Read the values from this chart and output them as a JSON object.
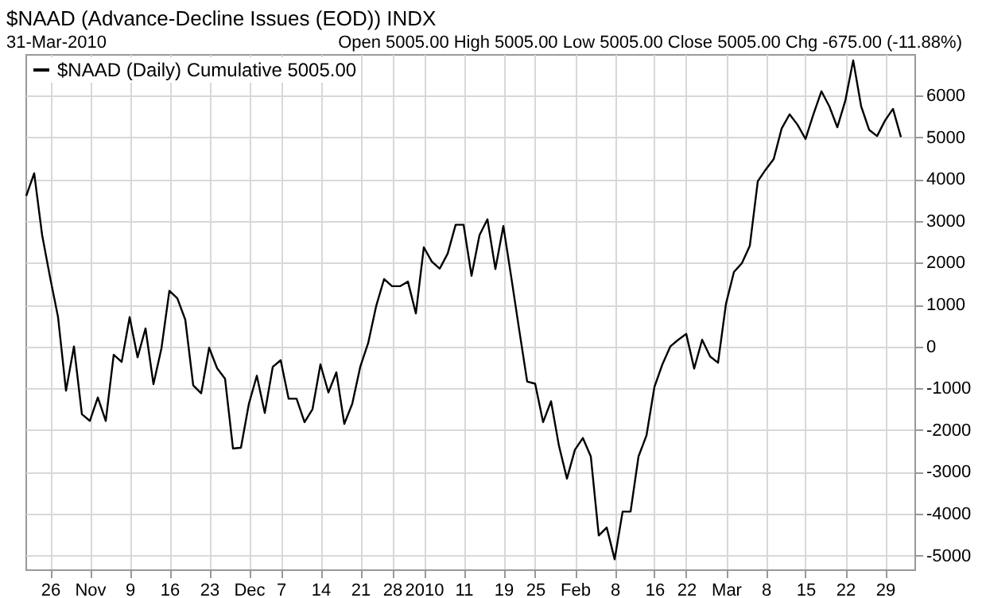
{
  "chart_data": {
    "type": "line",
    "title": "$NAAD (Advance-Decline Issues (EOD)) INDX",
    "subtitle": "31-Mar-2010",
    "annotations": [
      "Open 5005.00  High 5005.00  Low 5005.00  Close 5005.00  Chg -675.00 (-11.88%)"
    ],
    "categories": [
      null,
      null,
      null,
      "26",
      null,
      null,
      null,
      null,
      "Nov",
      null,
      null,
      null,
      null,
      "9",
      null,
      null,
      null,
      null,
      "16",
      null,
      null,
      null,
      null,
      "23",
      null,
      null,
      null,
      null,
      "Dec",
      null,
      null,
      null,
      "7",
      null,
      null,
      null,
      null,
      "14",
      null,
      null,
      null,
      null,
      "21",
      null,
      null,
      null,
      "28",
      null,
      null,
      null,
      "2010",
      null,
      null,
      null,
      null,
      "11",
      null,
      null,
      null,
      null,
      "19",
      null,
      null,
      null,
      "25",
      null,
      null,
      null,
      null,
      "Feb",
      null,
      null,
      null,
      null,
      "8",
      null,
      null,
      null,
      null,
      "16",
      null,
      null,
      null,
      "22",
      null,
      null,
      null,
      null,
      "Mar",
      null,
      null,
      null,
      null,
      "8",
      null,
      null,
      null,
      null,
      "15",
      null,
      null,
      null,
      null,
      "22",
      null,
      null,
      null,
      null,
      "29",
      null,
      null
    ],
    "series": [
      {
        "name": "$NAAD (Daily) Cumulative 5005.00",
        "color": "#000000",
        "values": [
          3600,
          4140,
          2660,
          1650,
          700,
          -1060,
          0,
          -1620,
          -1780,
          -1220,
          -1780,
          -200,
          -370,
          700,
          -260,
          430,
          -900,
          -50,
          1330,
          1150,
          640,
          -930,
          -1120,
          -30,
          -520,
          -770,
          -2440,
          -2420,
          -1370,
          -700,
          -1590,
          -490,
          -330,
          -1250,
          -1250,
          -1810,
          -1500,
          -430,
          -1100,
          -620,
          -1850,
          -1370,
          -490,
          80,
          960,
          1610,
          1440,
          1440,
          1550,
          790,
          2370,
          2030,
          1860,
          2220,
          2910,
          2910,
          1690,
          2660,
          3040,
          1850,
          2880,
          1650,
          390,
          -840,
          -890,
          -1810,
          -1310,
          -2380,
          -3160,
          -2470,
          -2190,
          -2630,
          -4520,
          -4330,
          -5090,
          -3950,
          -3950,
          -2630,
          -2130,
          -970,
          -430,
          0,
          160,
          300,
          -530,
          160,
          -240,
          -390,
          1020,
          1780,
          1990,
          2410,
          3950,
          4230,
          4480,
          5210,
          5550,
          5300,
          4960,
          5550,
          6100,
          5740,
          5240,
          5870,
          6840,
          5740,
          5180,
          5030,
          5400,
          5680,
          5005
        ]
      }
    ],
    "ylim": [
      -5330,
      6990
    ],
    "yticks": [
      -5000,
      -4000,
      -3000,
      -2000,
      -1000,
      0,
      1000,
      2000,
      3000,
      4000,
      5000,
      6000
    ],
    "grid": true,
    "legend": "top left",
    "line_style": "solid",
    "marker": "none"
  }
}
